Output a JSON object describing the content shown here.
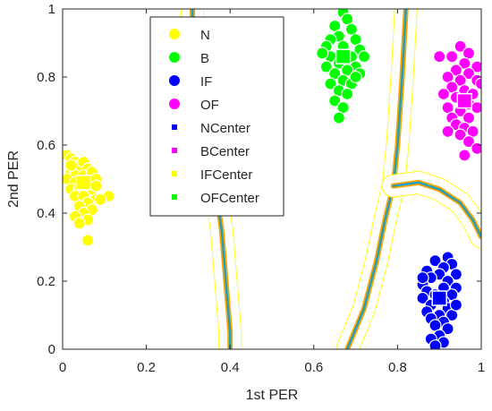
{
  "chart_data": {
    "type": "scatter",
    "xlabel": "1st PER",
    "ylabel": "2nd PER",
    "xlim": [
      0,
      1
    ],
    "ylim": [
      0,
      1
    ],
    "xticks": [
      "0",
      "0.2",
      "0.4",
      "0.6",
      "0.8",
      "1"
    ],
    "yticks": [
      "0",
      "0.2",
      "0.4",
      "0.6",
      "0.8",
      "1"
    ],
    "grid": false,
    "legend_position": "top-left",
    "legend": [
      {
        "label": "N",
        "marker": "circle",
        "color": "#ffff00"
      },
      {
        "label": "B",
        "marker": "circle",
        "color": "#00ff00"
      },
      {
        "label": "IF",
        "marker": "circle",
        "color": "#0000ff"
      },
      {
        "label": "OF",
        "marker": "circle",
        "color": "#ff00ff"
      },
      {
        "label": "NCenter",
        "marker": "square-small",
        "color": "#0000ff"
      },
      {
        "label": "BCenter",
        "marker": "square-small",
        "color": "#ff00ff"
      },
      {
        "label": "IFCenter",
        "marker": "square-small",
        "color": "#ffff00"
      },
      {
        "label": "OFCenter",
        "marker": "square-small",
        "color": "#00ff00"
      }
    ],
    "series": [
      {
        "name": "N",
        "color": "#ffff00",
        "points": [
          [
            0.01,
            0.57
          ],
          [
            0.02,
            0.56
          ],
          [
            0.03,
            0.55
          ],
          [
            0.04,
            0.54
          ],
          [
            0.05,
            0.55
          ],
          [
            0.06,
            0.53
          ],
          [
            0.02,
            0.52
          ],
          [
            0.03,
            0.51
          ],
          [
            0.05,
            0.51
          ],
          [
            0.07,
            0.52
          ],
          [
            0.01,
            0.5
          ],
          [
            0.03,
            0.49
          ],
          [
            0.06,
            0.49
          ],
          [
            0.08,
            0.5
          ],
          [
            0.02,
            0.47
          ],
          [
            0.04,
            0.47
          ],
          [
            0.07,
            0.47
          ],
          [
            0.03,
            0.45
          ],
          [
            0.05,
            0.45
          ],
          [
            0.08,
            0.44
          ],
          [
            0.11,
            0.45
          ],
          [
            0.06,
            0.43
          ],
          [
            0.04,
            0.42
          ],
          [
            0.07,
            0.41
          ],
          [
            0.05,
            0.4
          ],
          [
            0.03,
            0.39
          ],
          [
            0.06,
            0.38
          ],
          [
            0.04,
            0.37
          ],
          [
            0.06,
            0.32
          ],
          [
            0.09,
            0.44
          ],
          [
            0.02,
            0.54
          ],
          [
            0.08,
            0.48
          ]
        ]
      },
      {
        "name": "B",
        "color": "#00ff00",
        "points": [
          [
            0.67,
            0.99
          ],
          [
            0.68,
            0.97
          ],
          [
            0.65,
            0.95
          ],
          [
            0.69,
            0.94
          ],
          [
            0.66,
            0.92
          ],
          [
            0.64,
            0.91
          ],
          [
            0.7,
            0.91
          ],
          [
            0.63,
            0.89
          ],
          [
            0.67,
            0.89
          ],
          [
            0.71,
            0.88
          ],
          [
            0.64,
            0.86
          ],
          [
            0.69,
            0.86
          ],
          [
            0.66,
            0.84
          ],
          [
            0.7,
            0.83
          ],
          [
            0.63,
            0.83
          ],
          [
            0.68,
            0.82
          ],
          [
            0.65,
            0.81
          ],
          [
            0.71,
            0.81
          ],
          [
            0.67,
            0.79
          ],
          [
            0.64,
            0.78
          ],
          [
            0.69,
            0.78
          ],
          [
            0.66,
            0.76
          ],
          [
            0.68,
            0.75
          ],
          [
            0.65,
            0.73
          ],
          [
            0.67,
            0.71
          ],
          [
            0.66,
            0.68
          ],
          [
            0.72,
            0.86
          ],
          [
            0.62,
            0.87
          ],
          [
            0.7,
            0.8
          ]
        ]
      },
      {
        "name": "IF",
        "color": "#0000ff",
        "points": [
          [
            0.92,
            0.27
          ],
          [
            0.89,
            0.26
          ],
          [
            0.93,
            0.25
          ],
          [
            0.91,
            0.24
          ],
          [
            0.87,
            0.23
          ],
          [
            0.9,
            0.22
          ],
          [
            0.94,
            0.22
          ],
          [
            0.88,
            0.21
          ],
          [
            0.92,
            0.2
          ],
          [
            0.86,
            0.19
          ],
          [
            0.91,
            0.18
          ],
          [
            0.94,
            0.18
          ],
          [
            0.87,
            0.17
          ],
          [
            0.89,
            0.16
          ],
          [
            0.93,
            0.16
          ],
          [
            0.86,
            0.15
          ],
          [
            0.91,
            0.14
          ],
          [
            0.88,
            0.13
          ],
          [
            0.92,
            0.12
          ],
          [
            0.87,
            0.11
          ],
          [
            0.9,
            0.1
          ],
          [
            0.93,
            0.1
          ],
          [
            0.88,
            0.09
          ],
          [
            0.91,
            0.08
          ],
          [
            0.89,
            0.07
          ],
          [
            0.92,
            0.06
          ],
          [
            0.9,
            0.04
          ],
          [
            0.88,
            0.03
          ],
          [
            0.91,
            0.02
          ],
          [
            0.89,
            0.01
          ],
          [
            0.94,
            0.13
          ],
          [
            0.86,
            0.21
          ]
        ]
      },
      {
        "name": "OF",
        "color": "#ff00ff",
        "points": [
          [
            0.95,
            0.89
          ],
          [
            0.97,
            0.87
          ],
          [
            0.93,
            0.86
          ],
          [
            0.96,
            0.84
          ],
          [
            0.99,
            0.83
          ],
          [
            0.94,
            0.82
          ],
          [
            0.97,
            0.81
          ],
          [
            0.92,
            0.8
          ],
          [
            0.95,
            0.79
          ],
          [
            0.99,
            0.79
          ],
          [
            0.93,
            0.77
          ],
          [
            0.96,
            0.76
          ],
          [
            0.98,
            0.75
          ],
          [
            0.91,
            0.75
          ],
          [
            0.94,
            0.74
          ],
          [
            0.97,
            0.72
          ],
          [
            0.92,
            0.71
          ],
          [
            0.99,
            0.71
          ],
          [
            0.95,
            0.7
          ],
          [
            0.93,
            0.68
          ],
          [
            0.97,
            0.68
          ],
          [
            0.94,
            0.66
          ],
          [
            0.96,
            0.65
          ],
          [
            0.98,
            0.64
          ],
          [
            0.92,
            0.64
          ],
          [
            0.95,
            0.63
          ],
          [
            0.97,
            0.61
          ],
          [
            0.99,
            0.59
          ],
          [
            0.96,
            0.57
          ],
          [
            0.9,
            0.86
          ],
          [
            1.0,
            0.78
          ]
        ]
      }
    ],
    "centers": [
      {
        "name": "N",
        "x": 0.05,
        "y": 0.49,
        "color": "#ffff00"
      },
      {
        "name": "B",
        "x": 0.67,
        "y": 0.86,
        "color": "#00ff00"
      },
      {
        "name": "IF",
        "x": 0.9,
        "y": 0.15,
        "color": "#0000ff"
      },
      {
        "name": "OF",
        "x": 0.96,
        "y": 0.73,
        "color": "#ff00ff"
      }
    ],
    "decision_boundaries": [
      {
        "name": "ridge-left",
        "points": [
          [
            0.31,
            1.0
          ],
          [
            0.31,
            0.98
          ],
          [
            0.35,
            0.6
          ],
          [
            0.38,
            0.35
          ],
          [
            0.4,
            0.05
          ],
          [
            0.4,
            0.0
          ]
        ]
      },
      {
        "name": "ridge-diagonal",
        "points": [
          [
            0.68,
            0.0
          ],
          [
            0.72,
            0.12
          ],
          [
            0.75,
            0.26
          ],
          [
            0.77,
            0.38
          ],
          [
            0.79,
            0.48
          ]
        ]
      },
      {
        "name": "ridge-vertical",
        "points": [
          [
            0.79,
            0.48
          ],
          [
            0.8,
            0.6
          ],
          [
            0.81,
            0.78
          ],
          [
            0.82,
            1.0
          ]
        ]
      },
      {
        "name": "ridge-curve",
        "points": [
          [
            0.79,
            0.48
          ],
          [
            0.85,
            0.49
          ],
          [
            0.9,
            0.47
          ],
          [
            0.95,
            0.43
          ],
          [
            0.98,
            0.38
          ],
          [
            1.0,
            0.33
          ]
        ]
      }
    ],
    "contour_color": "#ffff00",
    "ridge_colors": {
      "outer": "#ffa500",
      "inner": "#1fa0c0"
    }
  }
}
